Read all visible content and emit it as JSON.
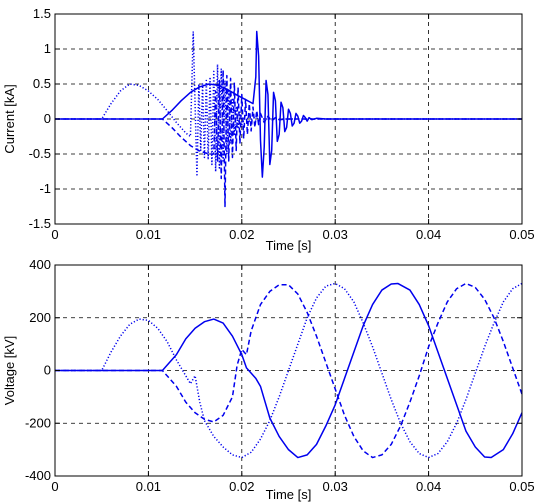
{
  "chart_data": [
    {
      "type": "line",
      "title": "",
      "xlabel": "Time [s]",
      "ylabel": "Current [kA]",
      "xlim": [
        0,
        0.05
      ],
      "ylim": [
        -1.5,
        1.5
      ],
      "xticks": [
        0,
        0.01,
        0.02,
        0.03,
        0.04,
        0.05
      ],
      "xtick_labels": [
        "0",
        "0.01",
        "0.02",
        "0.03",
        "0.04",
        "0.05"
      ],
      "yticks": [
        -1.5,
        -1,
        -0.5,
        0,
        0.5,
        1,
        1.5
      ],
      "ytick_labels": [
        "-1.5",
        "-1",
        "-0.5",
        "0",
        "0.5",
        "1",
        "1.5"
      ],
      "grid": true,
      "color": "#0000ee",
      "series": [
        {
          "style": "solid",
          "x": [
            0,
            0.0115,
            0.0125,
            0.0135,
            0.0145,
            0.0155,
            0.0165,
            0.0175,
            0.0185,
            0.0195,
            0.0205,
            0.0212,
            0.0215,
            0.0216,
            0.0218,
            0.022,
            0.0222,
            0.0224,
            0.0226,
            0.0228,
            0.023,
            0.0232,
            0.0234,
            0.0236,
            0.0238,
            0.024,
            0.0242,
            0.0244,
            0.0246,
            0.0248,
            0.025,
            0.0252,
            0.0254,
            0.0256,
            0.0258,
            0.026,
            0.0262,
            0.0264,
            0.0266,
            0.0268,
            0.027,
            0.0272,
            0.0275,
            0.028,
            0.029,
            0.05
          ],
          "y": [
            0,
            0,
            0.12,
            0.26,
            0.38,
            0.46,
            0.5,
            0.48,
            0.42,
            0.34,
            0.27,
            0.22,
            0.6,
            1.25,
            0.9,
            -0.3,
            -0.83,
            -0.4,
            0.55,
            0.35,
            -0.65,
            -0.45,
            0.38,
            0.26,
            -0.32,
            -0.22,
            0.24,
            0.16,
            -0.18,
            -0.12,
            0.14,
            0.08,
            -0.1,
            -0.06,
            0.08,
            0.04,
            -0.06,
            -0.03,
            0.05,
            0.02,
            -0.03,
            0.02,
            -0.01,
            0.01,
            0,
            0
          ]
        },
        {
          "style": "dashed",
          "x": [
            0,
            0.0115,
            0.0125,
            0.0135,
            0.0145,
            0.0155,
            0.0165,
            0.017,
            0.0172,
            0.0174,
            0.0176,
            0.0178,
            0.018,
            0.0182,
            0.0184,
            0.0186,
            0.0188,
            0.019,
            0.0192,
            0.0194,
            0.0196,
            0.0198,
            0.02,
            0.0202,
            0.0204,
            0.0206,
            0.0208,
            0.021,
            0.0212,
            0.0214,
            0.0216,
            0.0218,
            0.022,
            0.0224,
            0.0228,
            0.0232,
            0.0236,
            0.024,
            0.025,
            0.05
          ],
          "y": [
            0,
            0,
            -0.12,
            -0.26,
            -0.38,
            -0.46,
            -0.5,
            -0.5,
            0.4,
            -0.6,
            0.55,
            -0.85,
            0.7,
            -1.25,
            0.62,
            -0.6,
            0.58,
            -0.55,
            0.52,
            -0.45,
            0.45,
            -0.35,
            0.35,
            -0.28,
            0.28,
            -0.22,
            0.22,
            -0.17,
            0.17,
            -0.12,
            0.12,
            -0.08,
            0.08,
            -0.05,
            0.04,
            -0.03,
            0.02,
            -0.01,
            0,
            0
          ]
        },
        {
          "style": "dotted",
          "x": [
            0,
            0.005,
            0.006,
            0.007,
            0.008,
            0.009,
            0.01,
            0.011,
            0.012,
            0.013,
            0.014,
            0.0145,
            0.0148,
            0.015,
            0.0152,
            0.0154,
            0.0156,
            0.0158,
            0.016,
            0.0162,
            0.0164,
            0.0166,
            0.0168,
            0.017,
            0.0172,
            0.0174,
            0.0176,
            0.0178,
            0.018,
            0.0182,
            0.0184,
            0.0186,
            0.0188,
            0.019,
            0.0192,
            0.0194,
            0.0196,
            0.0198,
            0.02,
            0.0204,
            0.0208,
            0.0212,
            0.022,
            0.05
          ],
          "y": [
            0,
            0,
            0.22,
            0.4,
            0.5,
            0.48,
            0.4,
            0.28,
            0.12,
            -0.05,
            -0.2,
            -0.25,
            1.25,
            0.2,
            -0.82,
            0.5,
            -0.45,
            0.5,
            -0.55,
            0.55,
            -0.58,
            0.6,
            -0.65,
            0.68,
            -0.75,
            0.78,
            -0.7,
            0.72,
            -0.6,
            0.55,
            -0.5,
            0.42,
            -0.35,
            0.3,
            -0.22,
            0.18,
            -0.14,
            0.1,
            -0.08,
            0.05,
            -0.03,
            0.02,
            0,
            0
          ]
        }
      ]
    },
    {
      "type": "line",
      "title": "",
      "xlabel": "Time [s]",
      "ylabel": "Voltage [kV]",
      "xlim": [
        0,
        0.05
      ],
      "ylim": [
        -400,
        400
      ],
      "xticks": [
        0,
        0.01,
        0.02,
        0.03,
        0.04,
        0.05
      ],
      "xtick_labels": [
        "0",
        "0.01",
        "0.02",
        "0.03",
        "0.04",
        "0.05"
      ],
      "yticks": [
        -400,
        -200,
        0,
        200,
        400
      ],
      "ytick_labels": [
        "-400",
        "-200",
        "0",
        "200",
        "400"
      ],
      "grid": true,
      "color": "#0000ee",
      "series": [
        {
          "style": "solid",
          "x": [
            0,
            0.0115,
            0.013,
            0.014,
            0.015,
            0.016,
            0.017,
            0.018,
            0.019,
            0.02,
            0.0205,
            0.021,
            0.0215,
            0.022,
            0.0225,
            0.023,
            0.024,
            0.025,
            0.026,
            0.027,
            0.028,
            0.029,
            0.03,
            0.031,
            0.032,
            0.033,
            0.034,
            0.035,
            0.036,
            0.0367,
            0.038,
            0.039,
            0.04,
            0.041,
            0.042,
            0.043,
            0.044,
            0.045,
            0.046,
            0.0467,
            0.048,
            0.049,
            0.05
          ],
          "y": [
            0,
            0,
            60,
            120,
            160,
            185,
            195,
            180,
            130,
            60,
            10,
            -10,
            -30,
            -60,
            -120,
            -180,
            -250,
            -300,
            -330,
            -320,
            -280,
            -210,
            -130,
            -30,
            70,
            170,
            250,
            305,
            328,
            330,
            305,
            250,
            170,
            70,
            -30,
            -130,
            -230,
            -290,
            -328,
            -330,
            -300,
            -240,
            -160
          ]
        },
        {
          "style": "dashed",
          "x": [
            0,
            0.0115,
            0.013,
            0.014,
            0.015,
            0.016,
            0.017,
            0.018,
            0.019,
            0.0195,
            0.02,
            0.0205,
            0.021,
            0.0215,
            0.022,
            0.023,
            0.024,
            0.025,
            0.026,
            0.027,
            0.028,
            0.029,
            0.03,
            0.031,
            0.032,
            0.033,
            0.034,
            0.035,
            0.036,
            0.037,
            0.038,
            0.039,
            0.04,
            0.041,
            0.042,
            0.043,
            0.044,
            0.045,
            0.046,
            0.047,
            0.048,
            0.049,
            0.05
          ],
          "y": [
            0,
            0,
            -60,
            -120,
            -160,
            -185,
            -195,
            -170,
            -100,
            20,
            80,
            60,
            150,
            200,
            250,
            300,
            325,
            325,
            290,
            220,
            130,
            30,
            -70,
            -170,
            -250,
            -305,
            -330,
            -320,
            -280,
            -210,
            -120,
            -20,
            90,
            180,
            260,
            310,
            330,
            315,
            270,
            200,
            110,
            10,
            -90
          ]
        },
        {
          "style": "dotted",
          "x": [
            0,
            0.005,
            0.006,
            0.007,
            0.008,
            0.009,
            0.01,
            0.011,
            0.012,
            0.013,
            0.014,
            0.0145,
            0.015,
            0.0155,
            0.016,
            0.017,
            0.018,
            0.019,
            0.02,
            0.021,
            0.022,
            0.023,
            0.024,
            0.025,
            0.026,
            0.027,
            0.028,
            0.029,
            0.03,
            0.031,
            0.032,
            0.033,
            0.034,
            0.035,
            0.036,
            0.037,
            0.038,
            0.039,
            0.04,
            0.041,
            0.042,
            0.043,
            0.044,
            0.045,
            0.046,
            0.047,
            0.048,
            0.049,
            0.05
          ],
          "y": [
            0,
            0,
            70,
            130,
            175,
            195,
            190,
            160,
            110,
            40,
            -20,
            -50,
            -20,
            -120,
            -190,
            -250,
            -290,
            -320,
            -330,
            -310,
            -260,
            -190,
            -100,
            0,
            100,
            200,
            275,
            320,
            330,
            310,
            260,
            180,
            90,
            -10,
            -110,
            -200,
            -270,
            -315,
            -330,
            -315,
            -270,
            -200,
            -110,
            -10,
            90,
            180,
            260,
            310,
            330
          ]
        }
      ]
    }
  ]
}
